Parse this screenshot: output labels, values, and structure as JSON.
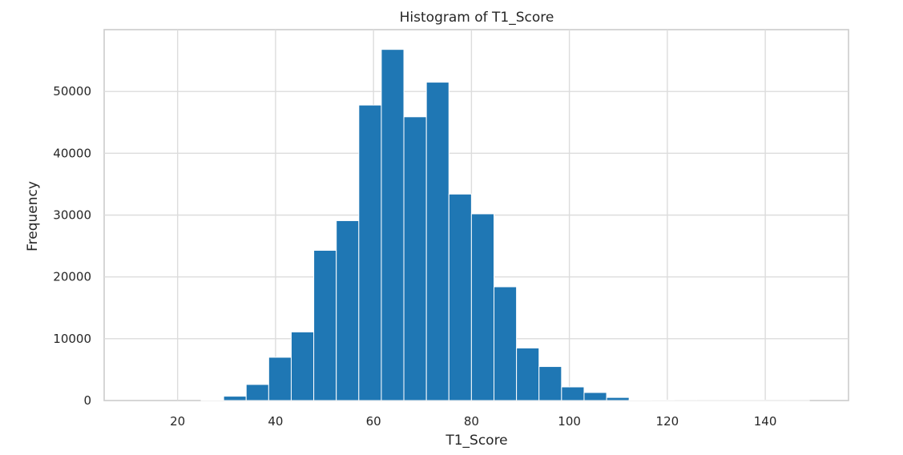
{
  "chart_data": {
    "type": "bar",
    "title": "Histogram of T1_Score",
    "xlabel": "T1_Score",
    "ylabel": "Frequency",
    "xlim": [
      5,
      157
    ],
    "ylim": [
      0,
      60000
    ],
    "x_ticks": [
      20,
      40,
      60,
      80,
      100,
      120,
      140
    ],
    "y_ticks": [
      0,
      10000,
      20000,
      30000,
      40000,
      50000
    ],
    "grid": true,
    "bar_color": "#1f77b4",
    "bins": [
      {
        "x0": 11.0,
        "x1": 15.6,
        "value": 0
      },
      {
        "x0": 15.6,
        "x1": 20.2,
        "value": 0
      },
      {
        "x0": 20.2,
        "x1": 24.8,
        "value": 0
      },
      {
        "x0": 24.8,
        "x1": 29.4,
        "value": 100
      },
      {
        "x0": 29.4,
        "x1": 34.0,
        "value": 700
      },
      {
        "x0": 34.0,
        "x1": 38.6,
        "value": 2600
      },
      {
        "x0": 38.6,
        "x1": 43.2,
        "value": 7000
      },
      {
        "x0": 43.2,
        "x1": 47.8,
        "value": 11100
      },
      {
        "x0": 47.8,
        "x1": 52.4,
        "value": 24300
      },
      {
        "x0": 52.4,
        "x1": 57.0,
        "value": 29100
      },
      {
        "x0": 57.0,
        "x1": 61.6,
        "value": 47800
      },
      {
        "x0": 61.6,
        "x1": 66.2,
        "value": 56800
      },
      {
        "x0": 66.2,
        "x1": 70.8,
        "value": 45900
      },
      {
        "x0": 70.8,
        "x1": 75.4,
        "value": 51500
      },
      {
        "x0": 75.4,
        "x1": 80.0,
        "value": 33400
      },
      {
        "x0": 80.0,
        "x1": 84.6,
        "value": 30200
      },
      {
        "x0": 84.6,
        "x1": 89.2,
        "value": 18400
      },
      {
        "x0": 89.2,
        "x1": 93.8,
        "value": 8500
      },
      {
        "x0": 93.8,
        "x1": 98.4,
        "value": 5500
      },
      {
        "x0": 98.4,
        "x1": 103.0,
        "value": 2200
      },
      {
        "x0": 103.0,
        "x1": 107.6,
        "value": 1300
      },
      {
        "x0": 107.6,
        "x1": 112.2,
        "value": 500
      },
      {
        "x0": 112.2,
        "x1": 116.8,
        "value": 100
      },
      {
        "x0": 116.8,
        "x1": 121.4,
        "value": 50
      },
      {
        "x0": 121.4,
        "x1": 126.0,
        "value": 30
      },
      {
        "x0": 126.0,
        "x1": 130.6,
        "value": 20
      },
      {
        "x0": 130.6,
        "x1": 135.2,
        "value": 10
      },
      {
        "x0": 135.2,
        "x1": 139.8,
        "value": 10
      },
      {
        "x0": 139.8,
        "x1": 144.4,
        "value": 5
      },
      {
        "x0": 144.4,
        "x1": 149.0,
        "value": 5
      }
    ]
  }
}
